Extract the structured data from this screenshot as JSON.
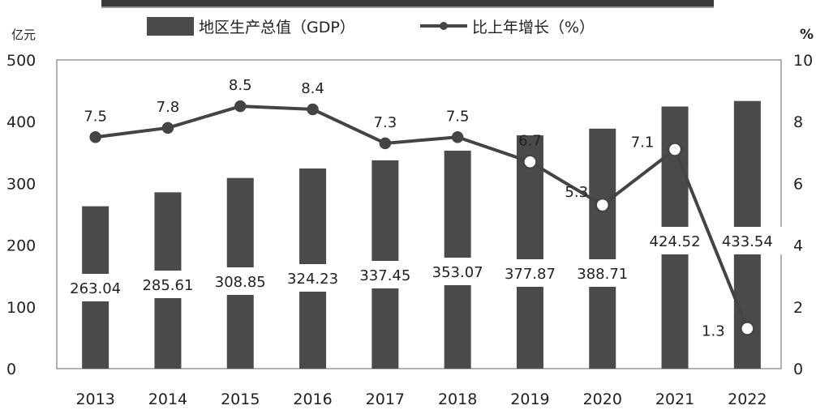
{
  "chart_data": {
    "type": "bar",
    "categories": [
      "2013",
      "2014",
      "2015",
      "2016",
      "2017",
      "2018",
      "2019",
      "2020",
      "2021",
      "2022"
    ],
    "series": [
      {
        "name": "地区生产总值（GDP）",
        "type": "bar",
        "axis": "left",
        "values": [
          263.04,
          285.61,
          308.85,
          324.23,
          337.45,
          353.07,
          377.87,
          388.71,
          424.52,
          433.54
        ],
        "labels": [
          "263.04",
          "285.61",
          "308.85",
          "324.23",
          "337.45",
          "353.07",
          "377.87",
          "388.71",
          "424.52",
          "433.54"
        ]
      },
      {
        "name": "比上年增长（%）",
        "type": "line",
        "axis": "right",
        "values": [
          7.5,
          7.8,
          8.5,
          8.4,
          7.3,
          7.5,
          6.7,
          5.3,
          7.1,
          1.3
        ],
        "labels": [
          "7.5",
          "7.8",
          "8.5",
          "8.4",
          "7.3",
          "7.5",
          "6.7",
          "5.3",
          "7.1",
          "1.3"
        ]
      }
    ],
    "ylabel": "亿元",
    "y2label": "%",
    "ylim": [
      0,
      500
    ],
    "y2lim": [
      0,
      10
    ],
    "yticks": [
      "0",
      "100",
      "200",
      "300",
      "400",
      "500"
    ],
    "y2ticks": [
      "0",
      "2",
      "4",
      "6",
      "8",
      "10"
    ],
    "legend_position": "top",
    "grid": false,
    "colors": {
      "bar": "#4a4a4a",
      "line": "#444444",
      "marker_fill": "#444444",
      "hollow_marker_fill": "#ffffff"
    }
  }
}
